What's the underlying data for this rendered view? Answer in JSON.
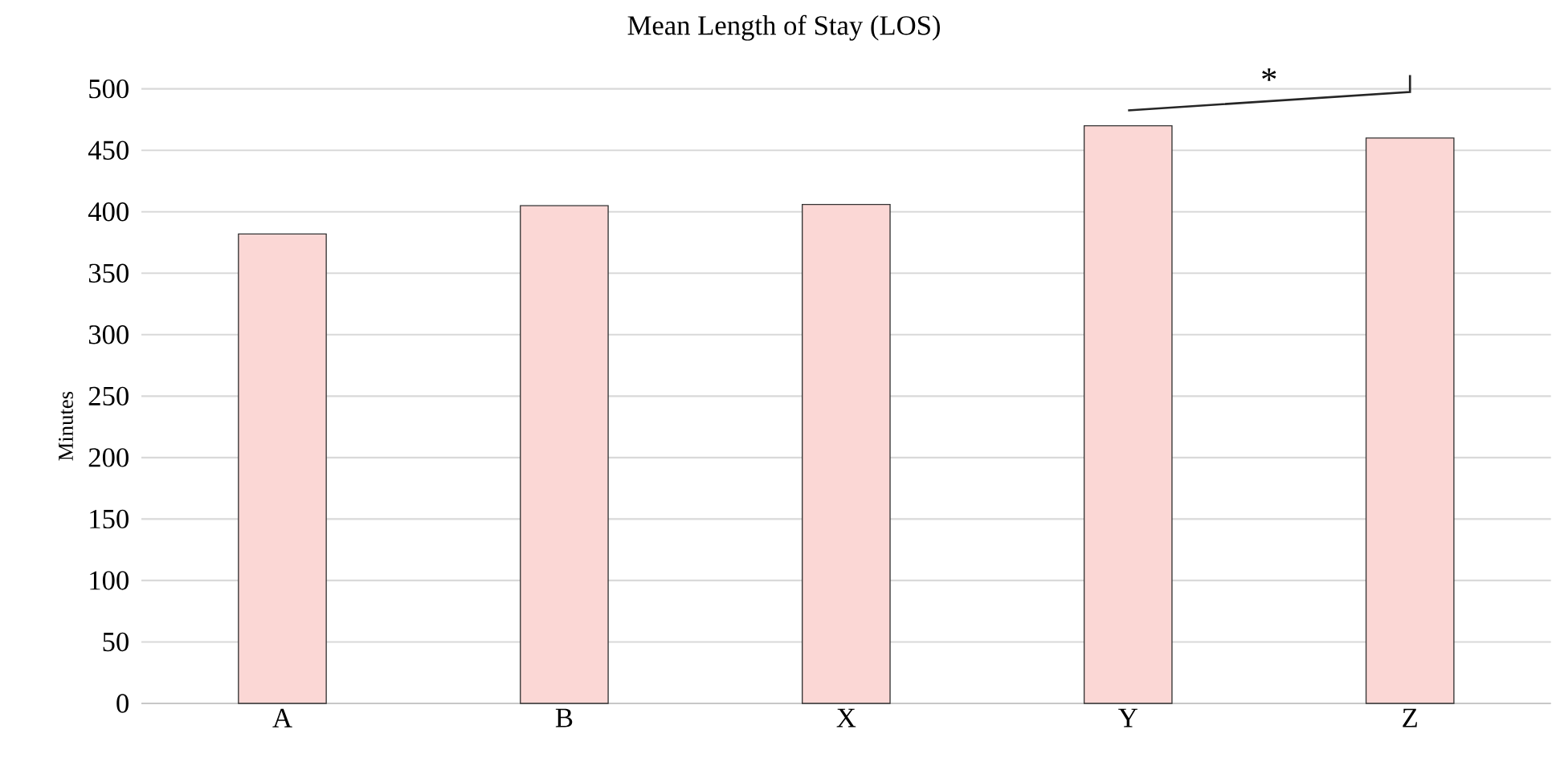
{
  "chart_data": {
    "type": "bar",
    "title": "Mean Length of Stay (LOS)",
    "ylabel": "Minutes",
    "categories": [
      "A",
      "B",
      "X",
      "Y",
      "Z"
    ],
    "values": [
      382,
      405,
      406,
      470,
      460
    ],
    "color": "#fbd7d5",
    "ylim": [
      0,
      500
    ],
    "yticks": [
      0,
      50,
      100,
      150,
      200,
      250,
      300,
      350,
      400,
      450,
      500
    ],
    "grid": "y",
    "annotations": [
      "*"
    ]
  }
}
